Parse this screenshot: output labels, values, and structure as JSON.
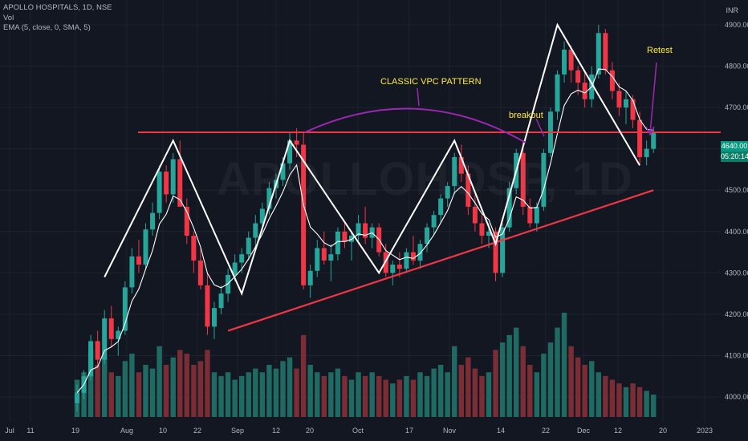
{
  "legend": {
    "symbol": "APOLLO HOSPITALS, 1D, NSE",
    "vol": "Vol",
    "ema": "EMA (5, close, 0, SMA, 5)"
  },
  "currency": "INR",
  "watermark": "APOLLOHOSP, 1D",
  "last_price": {
    "value": "4640.00",
    "countdown": "05:20:14"
  },
  "annotations": {
    "pattern": "CLASSIC VPC PATTERN",
    "breakout": "breakout",
    "retest": "Retest"
  },
  "colors": {
    "up": "#26a69a",
    "down": "#f23645",
    "vol_up": "#1f6b63",
    "vol_down": "#7a2d35",
    "ema": "#ffffff",
    "resistance": "#f23645",
    "trendline": "#f23645",
    "arc": "#9c27b0",
    "annotation": "#ffeb3b"
  },
  "chart_data": {
    "type": "candlestick",
    "title": "APOLLO HOSPITALS, 1D, NSE",
    "ylim": [
      3940,
      4960
    ],
    "y_ticks": [
      4000,
      4100,
      4200,
      4300,
      4400,
      4500,
      4600,
      4700,
      4800,
      4900
    ],
    "x_ticks": [
      "Jul",
      "11",
      "19",
      "Aug",
      "10",
      "22",
      "Sep",
      "12",
      "20",
      "Oct",
      "17",
      "Nov",
      "14",
      "22",
      "Dec",
      "12",
      "20",
      "2023"
    ],
    "resistance_level": 4640,
    "ohlc": [
      [
        3985,
        4030,
        3965,
        4010
      ],
      [
        4010,
        4065,
        3995,
        4050
      ],
      [
        4050,
        4150,
        4040,
        4135
      ],
      [
        4135,
        4160,
        4070,
        4090
      ],
      [
        4090,
        4210,
        4080,
        4190
      ],
      [
        4190,
        4220,
        4120,
        4140
      ],
      [
        4140,
        4170,
        4100,
        4160
      ],
      [
        4160,
        4280,
        4150,
        4265
      ],
      [
        4265,
        4360,
        4250,
        4340
      ],
      [
        4340,
        4380,
        4300,
        4320
      ],
      [
        4320,
        4420,
        4310,
        4405
      ],
      [
        4405,
        4470,
        4390,
        4445
      ],
      [
        4445,
        4560,
        4430,
        4545
      ],
      [
        4545,
        4560,
        4470,
        4490
      ],
      [
        4490,
        4590,
        4470,
        4575
      ],
      [
        4575,
        4620,
        4460,
        4460
      ],
      [
        4460,
        4480,
        4370,
        4390
      ],
      [
        4390,
        4400,
        4300,
        4330
      ],
      [
        4330,
        4360,
        4260,
        4270
      ],
      [
        4270,
        4300,
        4150,
        4170
      ],
      [
        4170,
        4230,
        4140,
        4215
      ],
      [
        4215,
        4270,
        4200,
        4250
      ],
      [
        4250,
        4310,
        4230,
        4295
      ],
      [
        4295,
        4345,
        4280,
        4325
      ],
      [
        4325,
        4360,
        4300,
        4345
      ],
      [
        4345,
        4400,
        4330,
        4385
      ],
      [
        4385,
        4440,
        4360,
        4420
      ],
      [
        4420,
        4470,
        4400,
        4455
      ],
      [
        4455,
        4520,
        4440,
        4505
      ],
      [
        4505,
        4540,
        4480,
        4525
      ],
      [
        4525,
        4580,
        4510,
        4565
      ],
      [
        4565,
        4640,
        4550,
        4620
      ],
      [
        4620,
        4650,
        4580,
        4610
      ],
      [
        4610,
        4640,
        4260,
        4270
      ],
      [
        4270,
        4320,
        4240,
        4305
      ],
      [
        4305,
        4380,
        4290,
        4360
      ],
      [
        4360,
        4400,
        4320,
        4330
      ],
      [
        4330,
        4370,
        4280,
        4345
      ],
      [
        4345,
        4410,
        4330,
        4400
      ],
      [
        4400,
        4420,
        4360,
        4375
      ],
      [
        4375,
        4400,
        4330,
        4390
      ],
      [
        4390,
        4440,
        4370,
        4420
      ],
      [
        4420,
        4460,
        4370,
        4385
      ],
      [
        4385,
        4420,
        4360,
        4410
      ],
      [
        4410,
        4420,
        4340,
        4350
      ],
      [
        4350,
        4370,
        4290,
        4300
      ],
      [
        4300,
        4330,
        4270,
        4320
      ],
      [
        4320,
        4350,
        4290,
        4310
      ],
      [
        4310,
        4360,
        4300,
        4350
      ],
      [
        4350,
        4390,
        4320,
        4330
      ],
      [
        4330,
        4380,
        4310,
        4370
      ],
      [
        4370,
        4420,
        4350,
        4410
      ],
      [
        4410,
        4450,
        4390,
        4440
      ],
      [
        4440,
        4490,
        4420,
        4480
      ],
      [
        4480,
        4520,
        4460,
        4510
      ],
      [
        4510,
        4590,
        4490,
        4580
      ],
      [
        4580,
        4610,
        4520,
        4540
      ],
      [
        4540,
        4560,
        4440,
        4460
      ],
      [
        4460,
        4490,
        4400,
        4420
      ],
      [
        4420,
        4440,
        4370,
        4390
      ],
      [
        4390,
        4420,
        4360,
        4400
      ],
      [
        4400,
        4410,
        4280,
        4300
      ],
      [
        4300,
        4420,
        4290,
        4410
      ],
      [
        4410,
        4520,
        4400,
        4505
      ],
      [
        4505,
        4600,
        4490,
        4590
      ],
      [
        4590,
        4620,
        4440,
        4460
      ],
      [
        4460,
        4480,
        4410,
        4420
      ],
      [
        4420,
        4470,
        4400,
        4460
      ],
      [
        4460,
        4600,
        4450,
        4590
      ],
      [
        4590,
        4700,
        4580,
        4690
      ],
      [
        4690,
        4790,
        4670,
        4780
      ],
      [
        4780,
        4860,
        4760,
        4840
      ],
      [
        4840,
        4850,
        4760,
        4790
      ],
      [
        4790,
        4800,
        4730,
        4760
      ],
      [
        4760,
        4790,
        4700,
        4720
      ],
      [
        4720,
        4800,
        4700,
        4780
      ],
      [
        4780,
        4900,
        4770,
        4880
      ],
      [
        4880,
        4890,
        4780,
        4790
      ],
      [
        4790,
        4810,
        4720,
        4740
      ],
      [
        4740,
        4760,
        4680,
        4700
      ],
      [
        4700,
        4740,
        4660,
        4720
      ],
      [
        4720,
        4730,
        4650,
        4670
      ],
      [
        4670,
        4690,
        4560,
        4580
      ],
      [
        4580,
        4620,
        4560,
        4600
      ],
      [
        4600,
        4650,
        4590,
        4640
      ]
    ],
    "volume": [
      50,
      60,
      90,
      70,
      80,
      60,
      55,
      75,
      85,
      60,
      70,
      65,
      95,
      70,
      80,
      90,
      85,
      70,
      75,
      90,
      60,
      55,
      60,
      50,
      55,
      60,
      65,
      60,
      70,
      65,
      75,
      80,
      65,
      110,
      70,
      60,
      55,
      60,
      65,
      55,
      50,
      60,
      55,
      60,
      55,
      50,
      45,
      50,
      55,
      50,
      60,
      55,
      65,
      70,
      60,
      95,
      70,
      80,
      65,
      55,
      60,
      90,
      100,
      110,
      120,
      95,
      70,
      60,
      85,
      100,
      120,
      140,
      95,
      80,
      70,
      75,
      60,
      55,
      50,
      45,
      40,
      45,
      40,
      35,
      30
    ],
    "ema": [
      4010,
      4030,
      4065,
      4073,
      4112,
      4121,
      4134,
      4178,
      4232,
      4261,
      4309,
      4354,
      4418,
      4442,
      4486,
      4477,
      4448,
      4409,
      4363,
      4299,
      4271,
      4264,
      4274,
      4291,
      4309,
      4334,
      4363,
      4394,
      4431,
      4462,
      4496,
      4537,
      4561,
      4464,
      4411,
      4394,
      4373,
      4364,
      4376,
      4376,
      4381,
      4394,
      4391,
      4397,
      4381,
      4354,
      4343,
      4332,
      4338,
      4335,
      4347,
      4368,
      4392,
      4421,
      4451,
      4494,
      4509,
      4493,
      4469,
      4443,
      4429,
      4386,
      4394,
      4431,
      4484,
      4476,
      4457,
      4458,
      4502,
      4565,
      4637,
      4705,
      4733,
      4742,
      4735,
      4750,
      4793,
      4792,
      4775,
      4750,
      4740,
      4717,
      4671,
      4647,
      4645
    ],
    "pattern_lines": [
      [
        [
          4,
          4290
        ],
        [
          14,
          4620
        ],
        [
          24,
          4250
        ],
        [
          31,
          4620
        ],
        [
          44,
          4300
        ],
        [
          55,
          4620
        ],
        [
          61,
          4370
        ],
        [
          70,
          4900
        ],
        [
          82,
          4560
        ]
      ]
    ],
    "trendline": [
      [
        22,
        4160
      ],
      [
        84,
        4500
      ]
    ]
  }
}
